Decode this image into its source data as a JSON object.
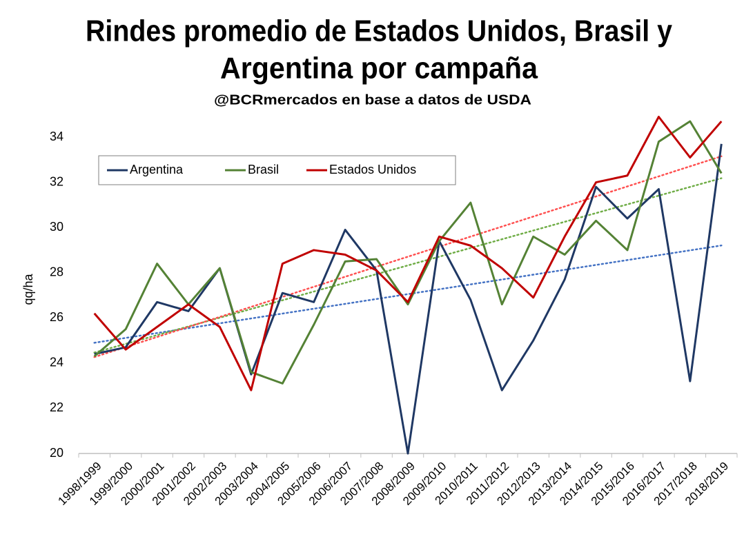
{
  "chart_data": {
    "type": "line",
    "title": [
      "Rindes promedio de Estados Unidos, Brasil y",
      "Argentina por campaña"
    ],
    "subtitle": "@BCRmercados en base a datos de USDA",
    "y_label": "qq/ha",
    "categories": [
      "1998/1999",
      "1999/2000",
      "2000/2001",
      "2001/2002",
      "2002/2003",
      "2003/2004",
      "2004/2005",
      "2005/2006",
      "2006/2007",
      "2007/2008",
      "2008/2009",
      "2009/2010",
      "2010/2011",
      "2011/2012",
      "2012/2013",
      "2013/2014",
      "2014/2015",
      "2015/2016",
      "2016/2017",
      "2017/2018",
      "2018/2019"
    ],
    "series": [
      {
        "name": "Argentina",
        "color": "#1f3864",
        "values": [
          24.4,
          24.7,
          26.7,
          26.3,
          28.2,
          23.5,
          27.1,
          26.7,
          29.9,
          28.1,
          20.0,
          29.4,
          26.8,
          22.8,
          25.0,
          27.7,
          31.8,
          30.4,
          31.7,
          23.2,
          33.7
        ]
      },
      {
        "name": "Brasil",
        "color": "#548235",
        "values": [
          24.3,
          25.5,
          28.4,
          26.6,
          28.2,
          23.6,
          23.1,
          25.7,
          28.5,
          28.6,
          26.6,
          29.4,
          31.1,
          26.6,
          29.6,
          28.8,
          30.3,
          29.0,
          33.8,
          34.7,
          32.4
        ]
      },
      {
        "name": "Estados Unidos",
        "color": "#c00000",
        "values": [
          26.2,
          24.6,
          25.6,
          26.6,
          25.6,
          22.8,
          28.4,
          29.0,
          28.8,
          28.1,
          26.7,
          29.6,
          29.2,
          28.2,
          26.9,
          29.6,
          32.0,
          32.3,
          34.9,
          33.1,
          34.7
        ]
      }
    ],
    "trendline": true,
    "trendline_colors": [
      "#4472c4",
      "#70ad47",
      "#ff5050"
    ],
    "ylim": [
      20,
      35
    ],
    "yticks": [
      20,
      22,
      24,
      26,
      28,
      30,
      32,
      34
    ],
    "grid": false,
    "legend": "top-left"
  }
}
